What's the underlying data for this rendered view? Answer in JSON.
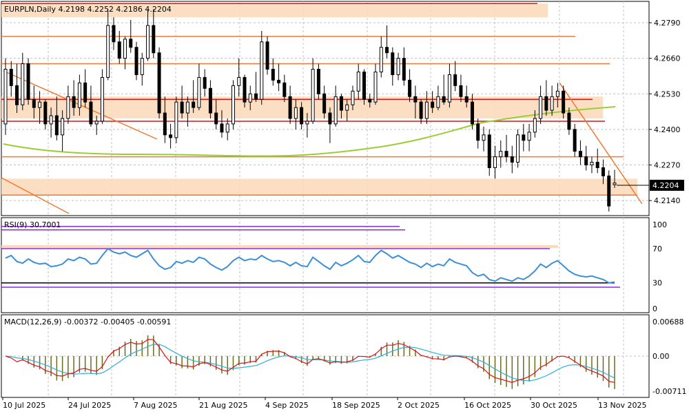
{
  "chart_data": {
    "type": "candlestick",
    "symbol_header": "EURPLN,Daily  4.2198 4.2252 4.2186 4.2204",
    "price_axis": {
      "ticks": [
        "4.2790",
        "4.2660",
        "4.2530",
        "4.2400",
        "4.2270",
        "4.2140"
      ],
      "ylim": [
        4.2085,
        4.2868
      ],
      "current_price": "4.2204"
    },
    "date_ticks": [
      "10 Jul 2025",
      "24 Jul 2025",
      "7 Aug 2025",
      "21 Aug 2025",
      "4 Sep 2025",
      "18 Sep 2025",
      "2 Oct 2025",
      "16 Oct 2025",
      "30 Oct 2025",
      "13 Nov 2025"
    ],
    "colors": {
      "bull": "#ffffff",
      "bear": "#000000",
      "zone": "#fcd9b8",
      "level_red": "#d01818",
      "level_orange": "#f07830",
      "ma": "#9acd32",
      "rsi": "#3a8fd8",
      "macd_signal": "#e01010",
      "macd_main": "#2ab0d8",
      "macd_hist": "#6b6b20",
      "rsi_level": "#8a2be2"
    },
    "candles": [
      [
        4.242,
        4.266,
        4.238,
        4.262
      ],
      [
        4.262,
        4.265,
        4.252,
        4.256
      ],
      [
        4.256,
        4.264,
        4.246,
        4.249
      ],
      [
        4.249,
        4.268,
        4.247,
        4.264
      ],
      [
        4.264,
        4.266,
        4.249,
        4.251
      ],
      [
        4.251,
        4.256,
        4.244,
        4.248
      ],
      [
        4.248,
        4.254,
        4.242,
        4.25
      ],
      [
        4.25,
        4.251,
        4.24,
        4.242
      ],
      [
        4.242,
        4.248,
        4.237,
        4.245
      ],
      [
        4.245,
        4.252,
        4.236,
        4.238
      ],
      [
        4.238,
        4.247,
        4.232,
        4.244
      ],
      [
        4.244,
        4.256,
        4.242,
        4.252
      ],
      [
        4.252,
        4.258,
        4.245,
        4.248
      ],
      [
        4.248,
        4.26,
        4.245,
        4.257
      ],
      [
        4.257,
        4.262,
        4.248,
        4.25
      ],
      [
        4.25,
        4.256,
        4.241,
        4.242
      ],
      [
        4.242,
        4.245,
        4.238,
        4.243
      ],
      [
        4.243,
        4.262,
        4.242,
        4.259
      ],
      [
        4.259,
        4.284,
        4.258,
        4.278
      ],
      [
        4.278,
        4.281,
        4.269,
        4.272
      ],
      [
        4.272,
        4.276,
        4.264,
        4.266
      ],
      [
        4.266,
        4.274,
        4.262,
        4.273
      ],
      [
        4.273,
        4.28,
        4.268,
        4.27
      ],
      [
        4.27,
        4.272,
        4.258,
        4.26
      ],
      [
        4.26,
        4.268,
        4.256,
        4.266
      ],
      [
        4.266,
        4.284,
        4.265,
        4.278
      ],
      [
        4.278,
        4.284,
        4.266,
        4.268
      ],
      [
        4.268,
        4.27,
        4.244,
        4.246
      ],
      [
        4.246,
        4.252,
        4.235,
        4.238
      ],
      [
        4.238,
        4.242,
        4.233,
        4.237
      ],
      [
        4.237,
        4.252,
        4.235,
        4.25
      ],
      [
        4.25,
        4.256,
        4.244,
        4.246
      ],
      [
        4.246,
        4.252,
        4.241,
        4.25
      ],
      [
        4.25,
        4.258,
        4.246,
        4.248
      ],
      [
        4.248,
        4.264,
        4.247,
        4.259
      ],
      [
        4.259,
        4.262,
        4.252,
        4.255
      ],
      [
        4.255,
        4.258,
        4.244,
        4.246
      ],
      [
        4.246,
        4.251,
        4.24,
        4.242
      ],
      [
        4.242,
        4.247,
        4.237,
        4.239
      ],
      [
        4.239,
        4.244,
        4.236,
        4.242
      ],
      [
        4.242,
        4.258,
        4.24,
        4.256
      ],
      [
        4.256,
        4.266,
        4.252,
        4.259
      ],
      [
        4.259,
        4.26,
        4.248,
        4.25
      ],
      [
        4.25,
        4.256,
        4.247,
        4.253
      ],
      [
        4.253,
        4.261,
        4.25,
        4.251
      ],
      [
        4.251,
        4.276,
        4.249,
        4.272
      ],
      [
        4.272,
        4.274,
        4.26,
        4.262
      ],
      [
        4.262,
        4.266,
        4.256,
        4.258
      ],
      [
        4.258,
        4.264,
        4.254,
        4.257
      ],
      [
        4.257,
        4.26,
        4.25,
        4.252
      ],
      [
        4.252,
        4.256,
        4.242,
        4.244
      ],
      [
        4.244,
        4.251,
        4.24,
        4.248
      ],
      [
        4.248,
        4.25,
        4.24,
        4.242
      ],
      [
        4.242,
        4.246,
        4.237,
        4.243
      ],
      [
        4.243,
        4.266,
        4.242,
        4.262
      ],
      [
        4.262,
        4.264,
        4.251,
        4.253
      ],
      [
        4.253,
        4.256,
        4.244,
        4.246
      ],
      [
        4.246,
        4.248,
        4.235,
        4.242
      ],
      [
        4.242,
        4.256,
        4.241,
        4.252
      ],
      [
        4.252,
        4.253,
        4.244,
        4.247
      ],
      [
        4.247,
        4.251,
        4.243,
        4.249
      ],
      [
        4.249,
        4.256,
        4.247,
        4.254
      ],
      [
        4.254,
        4.264,
        4.251,
        4.261
      ],
      [
        4.261,
        4.262,
        4.249,
        4.251
      ],
      [
        4.251,
        4.253,
        4.248,
        4.25
      ],
      [
        4.25,
        4.264,
        4.249,
        4.261
      ],
      [
        4.261,
        4.274,
        4.259,
        4.27
      ],
      [
        4.27,
        4.278,
        4.266,
        4.268
      ],
      [
        4.268,
        4.27,
        4.256,
        4.26
      ],
      [
        4.26,
        4.268,
        4.258,
        4.266
      ],
      [
        4.266,
        4.27,
        4.256,
        4.258
      ],
      [
        4.258,
        4.262,
        4.25,
        4.252
      ],
      [
        4.252,
        4.256,
        4.244,
        4.25
      ],
      [
        4.25,
        4.251,
        4.242,
        4.244
      ],
      [
        4.244,
        4.254,
        4.242,
        4.25
      ],
      [
        4.25,
        4.254,
        4.246,
        4.248
      ],
      [
        4.248,
        4.256,
        4.247,
        4.252
      ],
      [
        4.252,
        4.26,
        4.249,
        4.25
      ],
      [
        4.25,
        4.264,
        4.248,
        4.26
      ],
      [
        4.26,
        4.265,
        4.254,
        4.256
      ],
      [
        4.256,
        4.26,
        4.25,
        4.252
      ],
      [
        4.252,
        4.256,
        4.248,
        4.25
      ],
      [
        4.25,
        4.253,
        4.24,
        4.242
      ],
      [
        4.242,
        4.244,
        4.233,
        4.236
      ],
      [
        4.236,
        4.241,
        4.232,
        4.238
      ],
      [
        4.238,
        4.24,
        4.223,
        4.226
      ],
      [
        4.226,
        4.234,
        4.222,
        4.23
      ],
      [
        4.23,
        4.236,
        4.226,
        4.232
      ],
      [
        4.232,
        4.238,
        4.228,
        4.23
      ],
      [
        4.23,
        4.234,
        4.224,
        4.228
      ],
      [
        4.228,
        4.24,
        4.226,
        4.238
      ],
      [
        4.238,
        4.242,
        4.232,
        4.236
      ],
      [
        4.236,
        4.242,
        4.232,
        4.239
      ],
      [
        4.239,
        4.247,
        4.237,
        4.244
      ],
      [
        4.244,
        4.256,
        4.242,
        4.252
      ],
      [
        4.252,
        4.258,
        4.245,
        4.247
      ],
      [
        4.247,
        4.256,
        4.245,
        4.252
      ],
      [
        4.252,
        4.257,
        4.248,
        4.254
      ],
      [
        4.254,
        4.256,
        4.244,
        4.246
      ],
      [
        4.246,
        4.248,
        4.238,
        4.24
      ],
      [
        4.24,
        4.242,
        4.23,
        4.232
      ],
      [
        4.232,
        4.236,
        4.227,
        4.23
      ],
      [
        4.23,
        4.234,
        4.225,
        4.227
      ],
      [
        4.227,
        4.23,
        4.224,
        4.228
      ],
      [
        4.228,
        4.233,
        4.224,
        4.226
      ],
      [
        4.226,
        4.229,
        4.22,
        4.223
      ],
      [
        4.223,
        4.225,
        4.21,
        4.212
      ],
      [
        4.2198,
        4.2252,
        4.2186,
        4.2204
      ]
    ],
    "horizontal_levels": [
      {
        "value": 4.286,
        "color": "red"
      },
      {
        "value": 4.274,
        "color": "orange"
      },
      {
        "value": 4.264,
        "color": "orange"
      },
      {
        "value": 4.251,
        "color": "red"
      },
      {
        "value": 4.243,
        "color": "red"
      },
      {
        "value": 4.23,
        "color": "orange"
      },
      {
        "value": 4.216,
        "color": "orange"
      }
    ],
    "zones": [
      [
        4.281,
        4.286
      ],
      [
        4.244,
        4.252
      ],
      [
        4.216,
        4.222
      ]
    ],
    "rsi": {
      "label": "RSI(9) 30.7001",
      "axis_ticks": [
        "100",
        "70",
        "30",
        "0"
      ],
      "levels": [
        70,
        30,
        25
      ],
      "values": [
        59,
        62,
        55,
        53,
        58,
        54,
        52,
        53,
        49,
        50,
        52,
        58,
        56,
        60,
        58,
        52,
        53,
        62,
        70,
        66,
        64,
        66,
        62,
        60,
        64,
        68,
        58,
        50,
        46,
        48,
        55,
        53,
        56,
        54,
        60,
        58,
        52,
        48,
        45,
        49,
        56,
        60,
        56,
        58,
        57,
        62,
        58,
        55,
        56,
        54,
        50,
        54,
        50,
        49,
        60,
        55,
        50,
        46,
        54,
        50,
        53,
        57,
        62,
        55,
        54,
        62,
        68,
        64,
        59,
        62,
        58,
        54,
        52,
        48,
        53,
        49,
        52,
        50,
        58,
        54,
        52,
        50,
        42,
        38,
        40,
        34,
        32,
        36,
        34,
        32,
        36,
        34,
        38,
        44,
        52,
        48,
        53,
        56,
        50,
        44,
        40,
        38,
        37,
        38,
        36,
        34,
        30,
        31
      ]
    },
    "macd": {
      "label": "MACD(12,26,9) -0.00372 -0.00405 -0.00591",
      "axis_ticks": [
        "0.00688",
        "0.00",
        "-0.00711"
      ]
    }
  }
}
